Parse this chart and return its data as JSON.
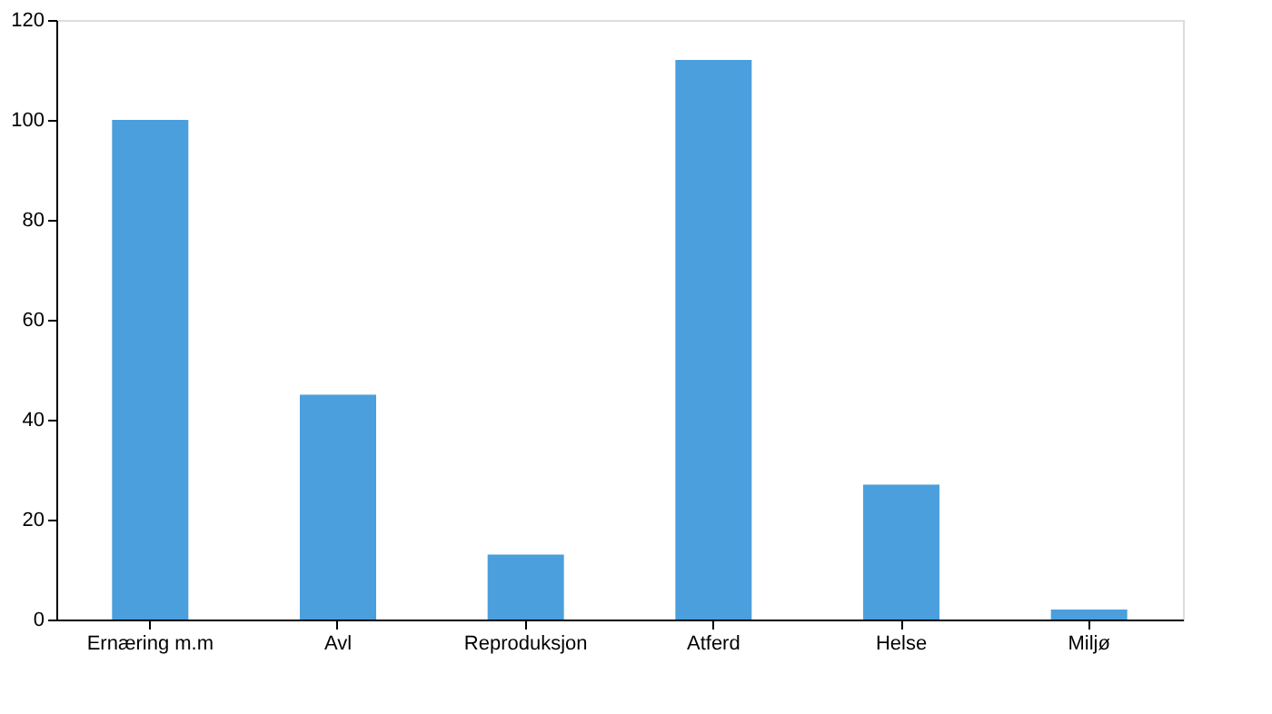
{
  "chart_data": {
    "type": "bar",
    "categories": [
      "Ernæring m.m",
      "Avl",
      "Reproduksjon",
      "Atferd",
      "Helse",
      "Miljø"
    ],
    "values": [
      100,
      45,
      13,
      112,
      27,
      2
    ],
    "color": "#4b9fdc",
    "ylim": [
      0,
      120
    ],
    "yticks": [
      0,
      20,
      40,
      60,
      80,
      100,
      120
    ],
    "grid": false
  }
}
